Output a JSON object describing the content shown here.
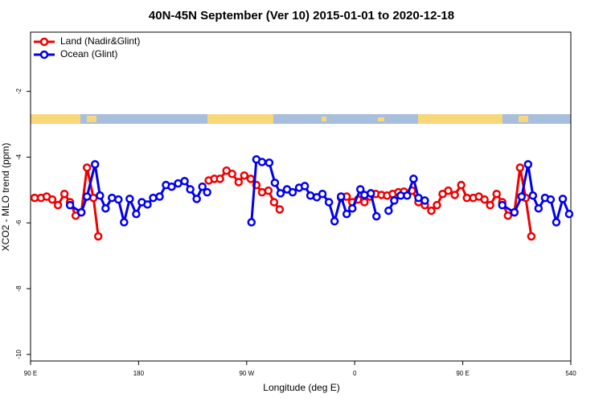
{
  "chart_data": {
    "type": "line",
    "title": "40N-45N September (Ver 10)   2015-01-01 to 2020-12-18",
    "xlabel": "Longitude (deg E)",
    "ylabel": "XCO2 - MLO trend (ppm)",
    "xlim": [
      90,
      540
    ],
    "ylim": [
      -10.2,
      -0.2
    ],
    "xticks": [
      {
        "value": 90,
        "label": "90 E"
      },
      180,
      {
        "value": 270,
        "label": "90 W"
      },
      {
        "value": 360,
        "label": "0"
      },
      {
        "value": 450,
        "label": "90 E"
      },
      540
    ],
    "yticks": [
      -10,
      -8,
      -6,
      -4,
      -2
    ],
    "legend": "top-left",
    "series": [
      {
        "name": "Land (Nadir&Glint)",
        "color": "#ee0000",
        "x": [
          93.4,
          98.7,
          103.4,
          108.1,
          112.8,
          118.2,
          122.9,
          127.6,
          132.3,
          137.0,
          142.4,
          146.4,
          null,
          238.4,
          243.1,
          247.8,
          253.2,
          257.9,
          263.3,
          268.0,
          273.4,
          278.1,
          282.8,
          288.1,
          292.8,
          297.5,
          null,
          348.6,
          353.3,
          358.0,
          362.7,
          368.1,
          372.8,
          377.5,
          382.2,
          386.9,
          391.6,
          396.3,
          401.0,
          407.7,
          413.1,
          418.4,
          423.8,
          428.5,
          433.2,
          437.9,
          443.3,
          448.7,
          453.4,
          458.7,
          463.4,
          468.1,
          472.8,
          478.2,
          482.9,
          487.6,
          493.0,
          497.7,
          502.4,
          507.1
        ],
        "values": [
          -5.24,
          -5.24,
          -5.2,
          -5.29,
          -5.46,
          -5.12,
          -5.37,
          -5.78,
          -5.68,
          -4.32,
          -5.24,
          -6.41,
          null,
          -4.71,
          -4.66,
          -4.66,
          -4.41,
          -4.51,
          -4.76,
          -4.56,
          -4.66,
          -4.85,
          -5.07,
          -5.02,
          -5.37,
          -5.59,
          null,
          -5.24,
          -5.2,
          -5.37,
          -5.29,
          -5.37,
          -5.2,
          -5.12,
          -5.15,
          -5.17,
          -5.12,
          -5.07,
          -5.05,
          -5.02,
          -5.37,
          -5.46,
          -5.63,
          -5.46,
          -5.12,
          -5.02,
          -5.15,
          -4.85,
          -5.24,
          -5.24,
          -5.2,
          -5.29,
          -5.46,
          -5.12,
          -5.37,
          -5.78,
          -5.68,
          -4.32,
          -5.24,
          -6.41
        ]
      },
      {
        "name": "Ocean (Glint)",
        "color": "#0000ee",
        "x": [
          122.9,
          132.3,
          137.0,
          143.7,
          147.8,
          152.5,
          157.8,
          163.2,
          167.9,
          172.6,
          178.0,
          182.7,
          187.4,
          192.1,
          197.5,
          202.8,
          207.5,
          212.9,
          218.3,
          223.0,
          228.4,
          233.1,
          237.1,
          null,
          274.0,
          278.1,
          282.8,
          288.8,
          293.5,
          298.2,
          303.6,
          308.3,
          313.7,
          318.4,
          323.1,
          328.4,
          333.1,
          338.5,
          343.2,
          348.6,
          353.3,
          358.0,
          364.7,
          368.1,
          373.4,
          378.1,
          null,
          388.2,
          392.9,
          398.3,
          403.6,
          409.0,
          413.1,
          418.4,
          null,
          482.9,
          493.0,
          499.0,
          504.4,
          508.4,
          513.1,
          518.5,
          523.2,
          527.9,
          533.3,
          538.6
        ],
        "values": [
          -5.46,
          -5.68,
          -5.2,
          -4.22,
          -5.17,
          -5.56,
          -5.24,
          -5.29,
          -5.98,
          -5.27,
          -5.73,
          -5.37,
          -5.44,
          -5.24,
          -5.2,
          -4.85,
          -4.9,
          -4.8,
          -4.73,
          -4.98,
          -5.27,
          -4.9,
          -5.07,
          null,
          -5.98,
          -4.07,
          -4.15,
          -4.17,
          -4.78,
          -5.1,
          -4.98,
          -5.07,
          -4.93,
          -4.88,
          -5.17,
          -5.22,
          -5.12,
          -5.37,
          -5.95,
          -5.2,
          -5.73,
          -5.56,
          -4.98,
          -5.15,
          -5.1,
          -5.8,
          null,
          -5.63,
          -5.32,
          -5.17,
          -5.17,
          -4.66,
          -5.24,
          -5.32,
          null,
          -5.46,
          -5.68,
          -5.2,
          -4.22,
          -5.17,
          -5.56,
          -5.24,
          -5.29,
          -5.98,
          -5.27,
          -5.73
        ]
      }
    ]
  }
}
